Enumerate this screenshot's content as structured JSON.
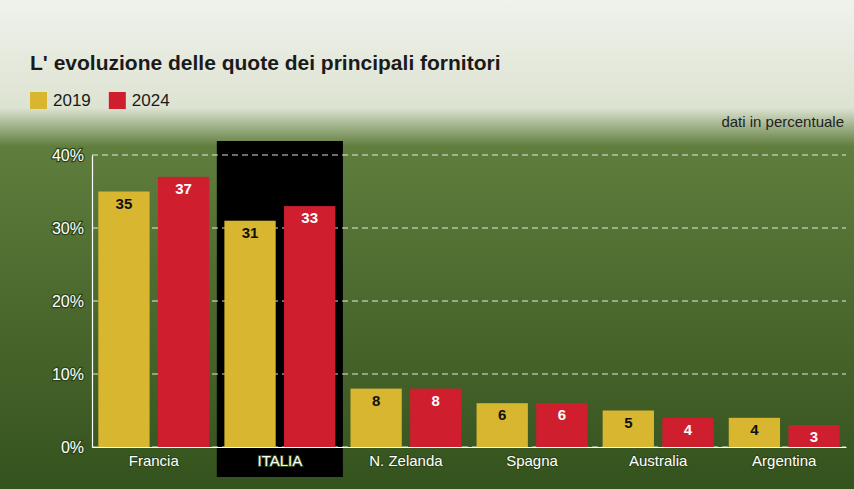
{
  "chart_data": {
    "type": "bar",
    "title": "L' evoluzione delle quote dei principali fornitori",
    "y_label": "dati in percentuale",
    "categories": [
      "Francia",
      "ITALIA",
      "N. Zelanda",
      "Spagna",
      "Australia",
      "Argentina"
    ],
    "series": [
      {
        "name": "2019",
        "color": "#d8b630",
        "values": [
          35,
          31,
          8,
          6,
          5,
          4
        ]
      },
      {
        "name": "2024",
        "color": "#cf1f2e",
        "values": [
          37,
          33,
          8,
          6,
          4,
          3
        ]
      }
    ],
    "ylim": [
      0,
      40
    ],
    "yticks": [
      {
        "value": 0,
        "label": "0%"
      },
      {
        "value": 10,
        "label": "10%"
      },
      {
        "value": 20,
        "label": "20%"
      },
      {
        "value": 30,
        "label": "30%"
      },
      {
        "value": 40,
        "label": "40%"
      }
    ],
    "grid": true,
    "data_labels": true,
    "legend": "top-left"
  }
}
